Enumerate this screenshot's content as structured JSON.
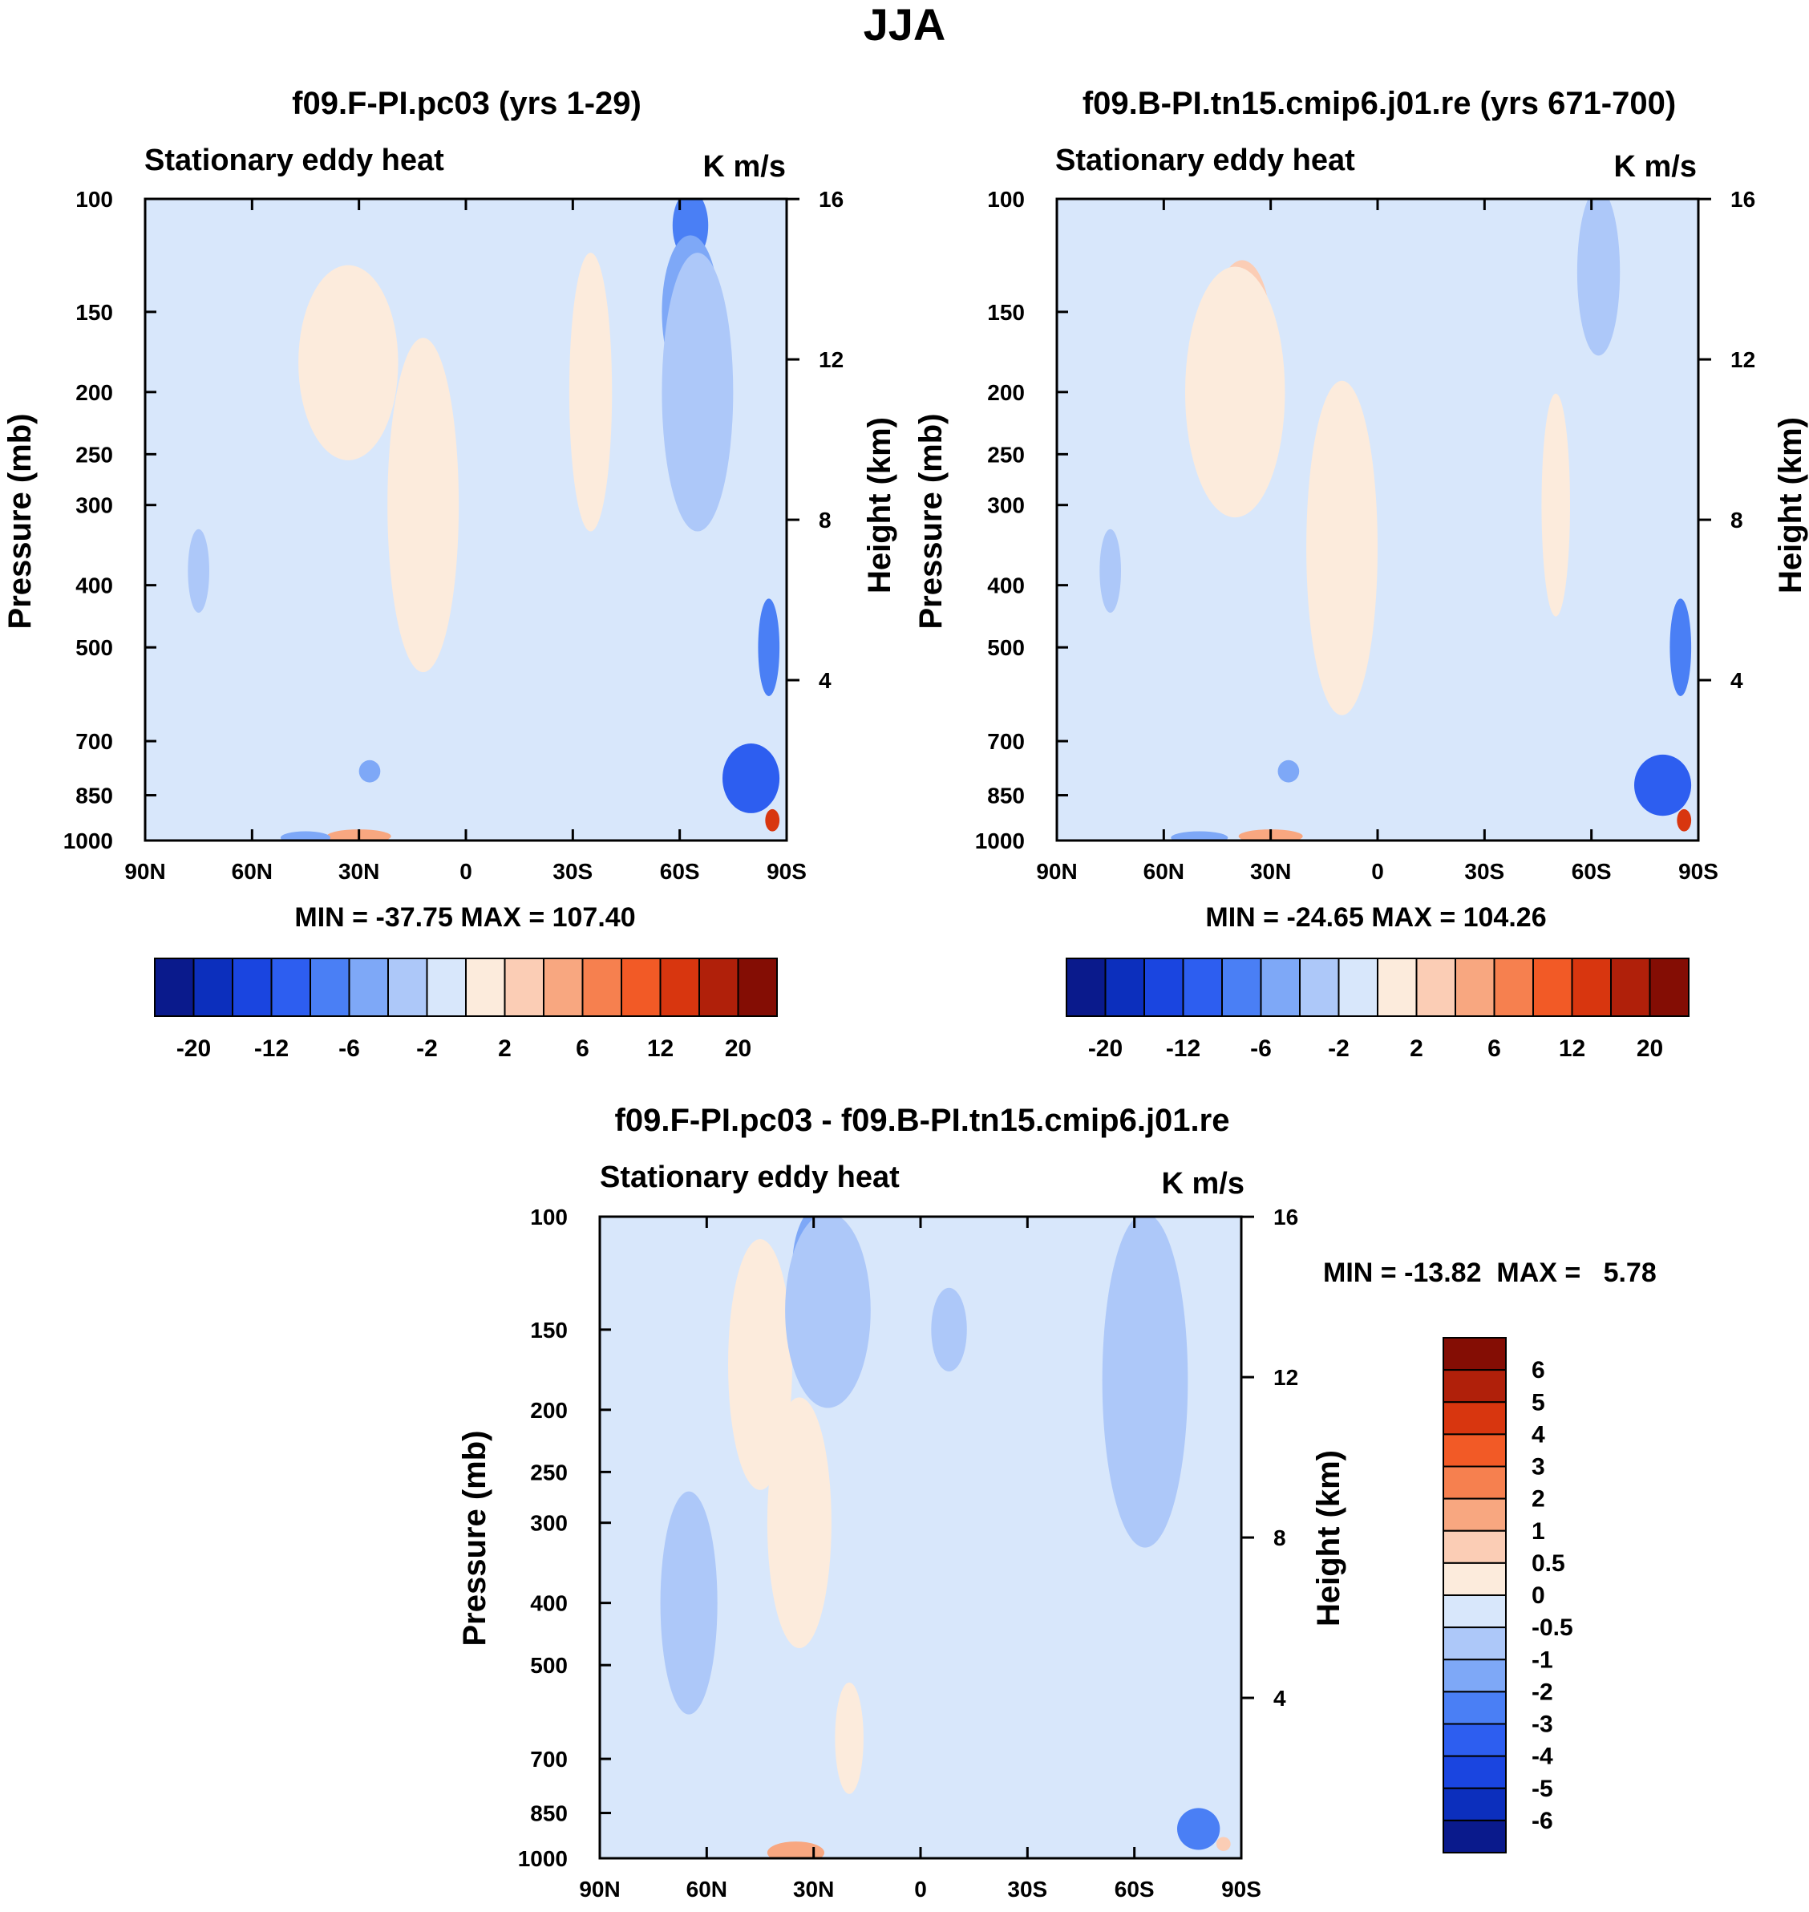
{
  "title": "JJA",
  "palette": {
    "negative": [
      "#0a1a8c",
      "#0c2fbd",
      "#1a45e0",
      "#2d5ef0",
      "#4a7ff5",
      "#7ea8f7",
      "#adc8f9",
      "#d8e7fb"
    ],
    "positive": [
      "#fcebdc",
      "#fbcdb5",
      "#f8a780",
      "#f6804f",
      "#f25a26",
      "#d8360f",
      "#b0200a",
      "#840d04"
    ],
    "background": "#d8e7fb"
  },
  "chart_data": [
    {
      "type": "contour",
      "id": "top-left",
      "title": "f09.F-PI.pc03 (yrs 1-29)",
      "left_label": "Stationary eddy heat",
      "right_label": "K m/s",
      "ylabel": "Pressure (mb)",
      "ylabel2": "Height (km)",
      "x_ticks": [
        "90N",
        "60N",
        "30N",
        "0",
        "30S",
        "60S",
        "90S"
      ],
      "x_values": [
        90,
        60,
        30,
        0,
        -30,
        -60,
        -90
      ],
      "y_ticks": [
        100,
        150,
        200,
        250,
        300,
        400,
        500,
        700,
        850,
        1000
      ],
      "y_ticks2": [
        16,
        12,
        8,
        4
      ],
      "minmax": "MIN = -37.75  MAX = 107.40",
      "colorbar_labels": [
        "-20",
        "-12",
        "-6",
        "-2",
        "2",
        "6",
        "12",
        "20"
      ],
      "features": [
        {
          "lat": 33,
          "p": 155,
          "lat_w": 8,
          "p_w": 0.35,
          "level": 2
        },
        {
          "lat": 33,
          "p": 180,
          "lat_w": 14,
          "p_w": 0.7,
          "level": 1
        },
        {
          "lat": -63,
          "p": 110,
          "lat_w": 5,
          "p_w": 0.25,
          "level": -4
        },
        {
          "lat": -63,
          "p": 150,
          "lat_w": 8,
          "p_w": 0.55,
          "level": -3
        },
        {
          "lat": -65,
          "p": 200,
          "lat_w": 10,
          "p_w": 1.0,
          "level": -2
        },
        {
          "lat": -85,
          "p": 500,
          "lat_w": 3,
          "p_w": 0.35,
          "level": -4
        },
        {
          "lat": -80,
          "p": 800,
          "lat_w": 8,
          "p_w": 0.25,
          "level": -5
        },
        {
          "lat": -86,
          "p": 930,
          "lat_w": 2,
          "p_w": 0.08,
          "level": 6
        },
        {
          "lat": 30,
          "p": 985,
          "lat_w": 9,
          "p_w": 0.05,
          "level": 3
        },
        {
          "lat": 45,
          "p": 990,
          "lat_w": 7,
          "p_w": 0.04,
          "level": -3
        },
        {
          "lat": 27,
          "p": 780,
          "lat_w": 3,
          "p_w": 0.08,
          "level": -3
        },
        {
          "lat": 75,
          "p": 380,
          "lat_w": 3,
          "p_w": 0.3,
          "level": -2
        },
        {
          "lat": 12,
          "p": 300,
          "lat_w": 10,
          "p_w": 1.2,
          "level": 1
        },
        {
          "lat": -35,
          "p": 200,
          "lat_w": 6,
          "p_w": 1.0,
          "level": 1
        }
      ]
    },
    {
      "type": "contour",
      "id": "top-right",
      "title": "f09.B-PI.tn15.cmip6.j01.re (yrs 671-700)",
      "left_label": "Stationary eddy heat",
      "right_label": "K m/s",
      "ylabel": "Pressure (mb)",
      "ylabel2": "Height (km)",
      "x_ticks": [
        "90N",
        "60N",
        "30N",
        "0",
        "30S",
        "60S",
        "90S"
      ],
      "x_values": [
        90,
        60,
        30,
        0,
        -30,
        -60,
        -90
      ],
      "y_ticks": [
        100,
        150,
        200,
        250,
        300,
        400,
        500,
        700,
        850,
        1000
      ],
      "y_ticks2": [
        16,
        12,
        8,
        4
      ],
      "minmax": "MIN = -24.65  MAX = 104.26",
      "colorbar_labels": [
        "-20",
        "-12",
        "-6",
        "-2",
        "2",
        "6",
        "12",
        "20"
      ],
      "features": [
        {
          "lat": 38,
          "p": 150,
          "lat_w": 4,
          "p_w": 0.25,
          "level": 3
        },
        {
          "lat": 38,
          "p": 160,
          "lat_w": 8,
          "p_w": 0.5,
          "level": 2
        },
        {
          "lat": 40,
          "p": 200,
          "lat_w": 14,
          "p_w": 0.9,
          "level": 1
        },
        {
          "lat": -62,
          "p": 130,
          "lat_w": 6,
          "p_w": 0.6,
          "level": -2
        },
        {
          "lat": -85,
          "p": 500,
          "lat_w": 3,
          "p_w": 0.35,
          "level": -4
        },
        {
          "lat": -80,
          "p": 820,
          "lat_w": 8,
          "p_w": 0.22,
          "level": -5
        },
        {
          "lat": -86,
          "p": 930,
          "lat_w": 2,
          "p_w": 0.08,
          "level": 6
        },
        {
          "lat": 30,
          "p": 985,
          "lat_w": 9,
          "p_w": 0.05,
          "level": 3
        },
        {
          "lat": 50,
          "p": 990,
          "lat_w": 8,
          "p_w": 0.04,
          "level": -3
        },
        {
          "lat": 25,
          "p": 780,
          "lat_w": 3,
          "p_w": 0.08,
          "level": -3
        },
        {
          "lat": 75,
          "p": 380,
          "lat_w": 3,
          "p_w": 0.3,
          "level": -2
        },
        {
          "lat": 10,
          "p": 350,
          "lat_w": 10,
          "p_w": 1.2,
          "level": 1
        },
        {
          "lat": -50,
          "p": 300,
          "lat_w": 4,
          "p_w": 0.8,
          "level": 1
        }
      ]
    },
    {
      "type": "contour",
      "id": "bottom-difference",
      "title": "f09.F-PI.pc03 - f09.B-PI.tn15.cmip6.j01.re",
      "left_label": "Stationary eddy heat",
      "right_label": "K m/s",
      "ylabel": "Pressure (mb)",
      "ylabel2": "Height (km)",
      "x_ticks": [
        "90N",
        "60N",
        "30N",
        "0",
        "30S",
        "60S",
        "90S"
      ],
      "x_values": [
        90,
        60,
        30,
        0,
        -30,
        -60,
        -90
      ],
      "y_ticks": [
        100,
        150,
        200,
        250,
        300,
        400,
        500,
        700,
        850,
        1000
      ],
      "y_ticks2": [
        16,
        12,
        8,
        4
      ],
      "minmax": "MIN = -13.82  MAX =   5.78",
      "colorbar_labels": [
        "6",
        "5",
        "4",
        "3",
        "2",
        "1",
        "0.5",
        "0",
        "-0.5",
        "-1",
        "-2",
        "-3",
        "-4",
        "-5",
        "-6"
      ],
      "features": [
        {
          "lat": 46,
          "p": 150,
          "lat_w": 5,
          "p_w": 0.5,
          "level": 2
        },
        {
          "lat": 45,
          "p": 170,
          "lat_w": 9,
          "p_w": 0.9,
          "level": 1
        },
        {
          "lat": 34,
          "p": 280,
          "lat_w": 3,
          "p_w": 0.25,
          "level": 3
        },
        {
          "lat": 34,
          "p": 280,
          "lat_w": 6,
          "p_w": 0.6,
          "level": 2
        },
        {
          "lat": 34,
          "p": 300,
          "lat_w": 9,
          "p_w": 0.9,
          "level": 1
        },
        {
          "lat": 28,
          "p": 120,
          "lat_w": 8,
          "p_w": 0.45,
          "level": -3
        },
        {
          "lat": 26,
          "p": 140,
          "lat_w": 12,
          "p_w": 0.7,
          "level": -2
        },
        {
          "lat": -63,
          "p": 130,
          "lat_w": 5,
          "p_w": 0.5,
          "level": -4
        },
        {
          "lat": -63,
          "p": 150,
          "lat_w": 8,
          "p_w": 0.8,
          "level": -3
        },
        {
          "lat": -63,
          "p": 180,
          "lat_w": 12,
          "p_w": 1.2,
          "level": -2
        },
        {
          "lat": 65,
          "p": 400,
          "lat_w": 8,
          "p_w": 0.8,
          "level": -2
        },
        {
          "lat": -8,
          "p": 150,
          "lat_w": 5,
          "p_w": 0.3,
          "level": -2
        },
        {
          "lat": 35,
          "p": 980,
          "lat_w": 8,
          "p_w": 0.08,
          "level": 3
        },
        {
          "lat": 20,
          "p": 650,
          "lat_w": 4,
          "p_w": 0.4,
          "level": 1
        },
        {
          "lat": -78,
          "p": 900,
          "lat_w": 6,
          "p_w": 0.15,
          "level": -4
        },
        {
          "lat": -85,
          "p": 950,
          "lat_w": 2,
          "p_w": 0.05,
          "level": 2
        }
      ]
    }
  ]
}
